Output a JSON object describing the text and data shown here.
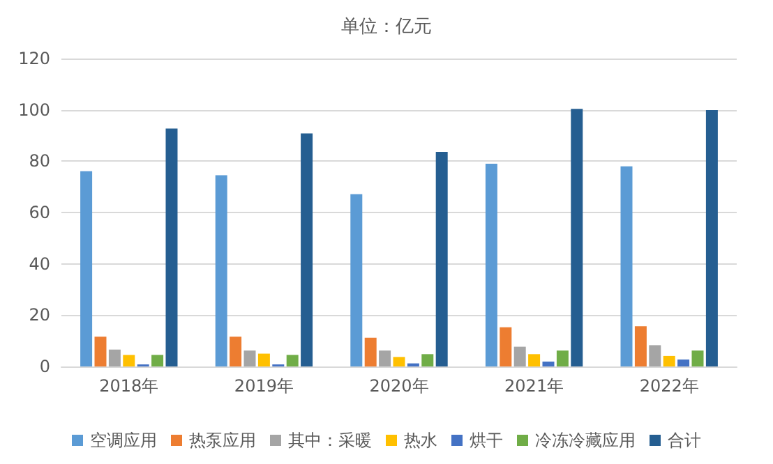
{
  "chart_data": {
    "type": "bar",
    "title": "单位：亿元",
    "categories": [
      "2018年",
      "2019年",
      "2020年",
      "2021年",
      "2022年"
    ],
    "series": [
      {
        "name": "空调应用",
        "color": "#5b9bd5",
        "values": [
          76.1,
          74.5,
          67.1,
          79,
          78
        ]
      },
      {
        "name": "热泵应用",
        "color": "#ed7d31",
        "values": [
          11.6,
          11.6,
          11.2,
          15.3,
          15.7
        ]
      },
      {
        "name": "其中：采暖",
        "color": "#a5a5a5",
        "values": [
          6.6,
          6.2,
          6.2,
          7.7,
          8.3
        ]
      },
      {
        "name": "热水",
        "color": "#ffc000",
        "values": [
          4.5,
          5,
          3.7,
          4.8,
          4.1
        ]
      },
      {
        "name": "烘干",
        "color": "#4472c4",
        "values": [
          0.8,
          0.8,
          1.2,
          1.9,
          2.7
        ]
      },
      {
        "name": "冷冻冷藏应用",
        "color": "#70ad47",
        "values": [
          4.5,
          4.5,
          4.8,
          6.2,
          6.2
        ]
      },
      {
        "name": "合计",
        "color": "#255e91",
        "values": [
          92.7,
          90.8,
          83.6,
          100.4,
          99.9
        ]
      }
    ],
    "ylim": [
      0,
      120
    ],
    "yticks": [
      0,
      20,
      40,
      60,
      80,
      100,
      120
    ],
    "grid": "y",
    "legend": "bottom"
  }
}
